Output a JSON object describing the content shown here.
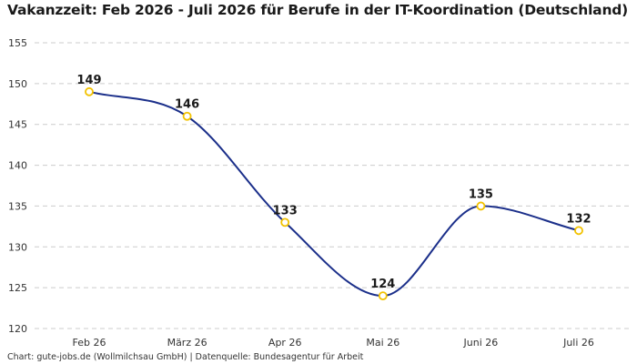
{
  "colors": {
    "line": "#1b2f8a",
    "point": "#f2c200",
    "grid": "#cccccc"
  },
  "footer": "Chart: gute-jobs.de (Wollmilchsau GmbH) | Datenquelle: Bundesagentur für Arbeit",
  "chart_data": {
    "type": "line",
    "title": "Vakanzzeit: Feb 2026 - Juli 2026 für Berufe in der IT-Koordination (Deutschland)",
    "categories": [
      "Feb 26",
      "März 26",
      "Apr 26",
      "Mai 26",
      "Juni 26",
      "Juli 26"
    ],
    "values": [
      149,
      146,
      133,
      124,
      135,
      132
    ],
    "xlabel": "",
    "ylabel": "",
    "ylim": [
      120,
      155
    ],
    "yticks": [
      120,
      125,
      130,
      135,
      140,
      145,
      150,
      155
    ],
    "grid": true,
    "grid_style": "dashed-horizontal",
    "legend": "none",
    "smooth": true,
    "data_labels": true
  }
}
